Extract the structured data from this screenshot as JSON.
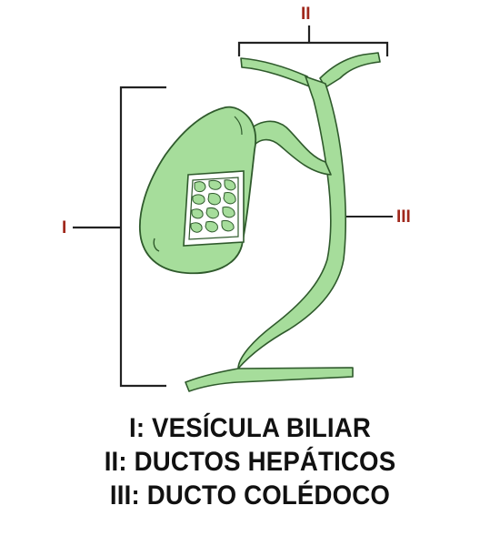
{
  "markers": {
    "gallbladder": "I",
    "hepatic_ducts": "II",
    "common_duct": "III"
  },
  "legend": [
    "I: VESÍCULA BILIAR",
    "II: DUCTOS HEPÁTICOS",
    "III: DUCTO COLÉDOCO"
  ],
  "colors": {
    "organ_fill": "#a6dd9b",
    "organ_stroke": "#2f5a2c",
    "marker_text": "#a0281c",
    "bracket": "#222222",
    "caption_text": "#111111"
  }
}
